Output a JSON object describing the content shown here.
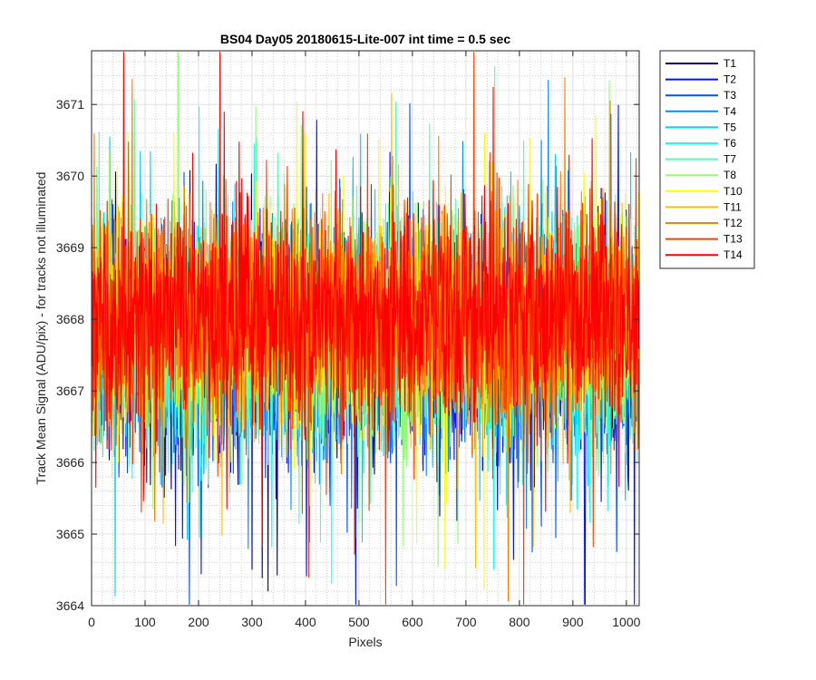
{
  "chart_data": {
    "type": "line",
    "title": "BS04 Day05 20180615-Lite-007 int time = 0.5 sec",
    "xlabel": "Pixels",
    "ylabel": "Track Mean Signal (ADU/pix) - for tracks not illuminated",
    "xlim": [
      0,
      1024
    ],
    "ylim": [
      3664,
      3671.75
    ],
    "xticks": [
      0,
      100,
      200,
      300,
      400,
      500,
      600,
      700,
      800,
      900,
      1000
    ],
    "yticks": [
      3664,
      3665,
      3666,
      3667,
      3668,
      3669,
      3670,
      3671
    ],
    "grid": "major and minor, dotted",
    "legend_position": "outside top-right",
    "series_summary": {
      "points_per_series": 1024,
      "mean": 3667.8,
      "typical_min": 3664.8,
      "typical_max": 3670.8
    },
    "series": [
      {
        "name": "T1",
        "color": "#00008f"
      },
      {
        "name": "T2",
        "color": "#0010ff"
      },
      {
        "name": "T3",
        "color": "#0050ff"
      },
      {
        "name": "T4",
        "color": "#0090ff"
      },
      {
        "name": "T5",
        "color": "#00d0ff"
      },
      {
        "name": "T6",
        "color": "#10ffef"
      },
      {
        "name": "T7",
        "color": "#50ffaf"
      },
      {
        "name": "T8",
        "color": "#90ff6f"
      },
      {
        "name": "T10",
        "color": "#ffff00"
      },
      {
        "name": "T11",
        "color": "#ffc000"
      },
      {
        "name": "T12",
        "color": "#ff8000"
      },
      {
        "name": "T13",
        "color": "#ff4000"
      },
      {
        "name": "T14",
        "color": "#ff0000"
      }
    ]
  }
}
